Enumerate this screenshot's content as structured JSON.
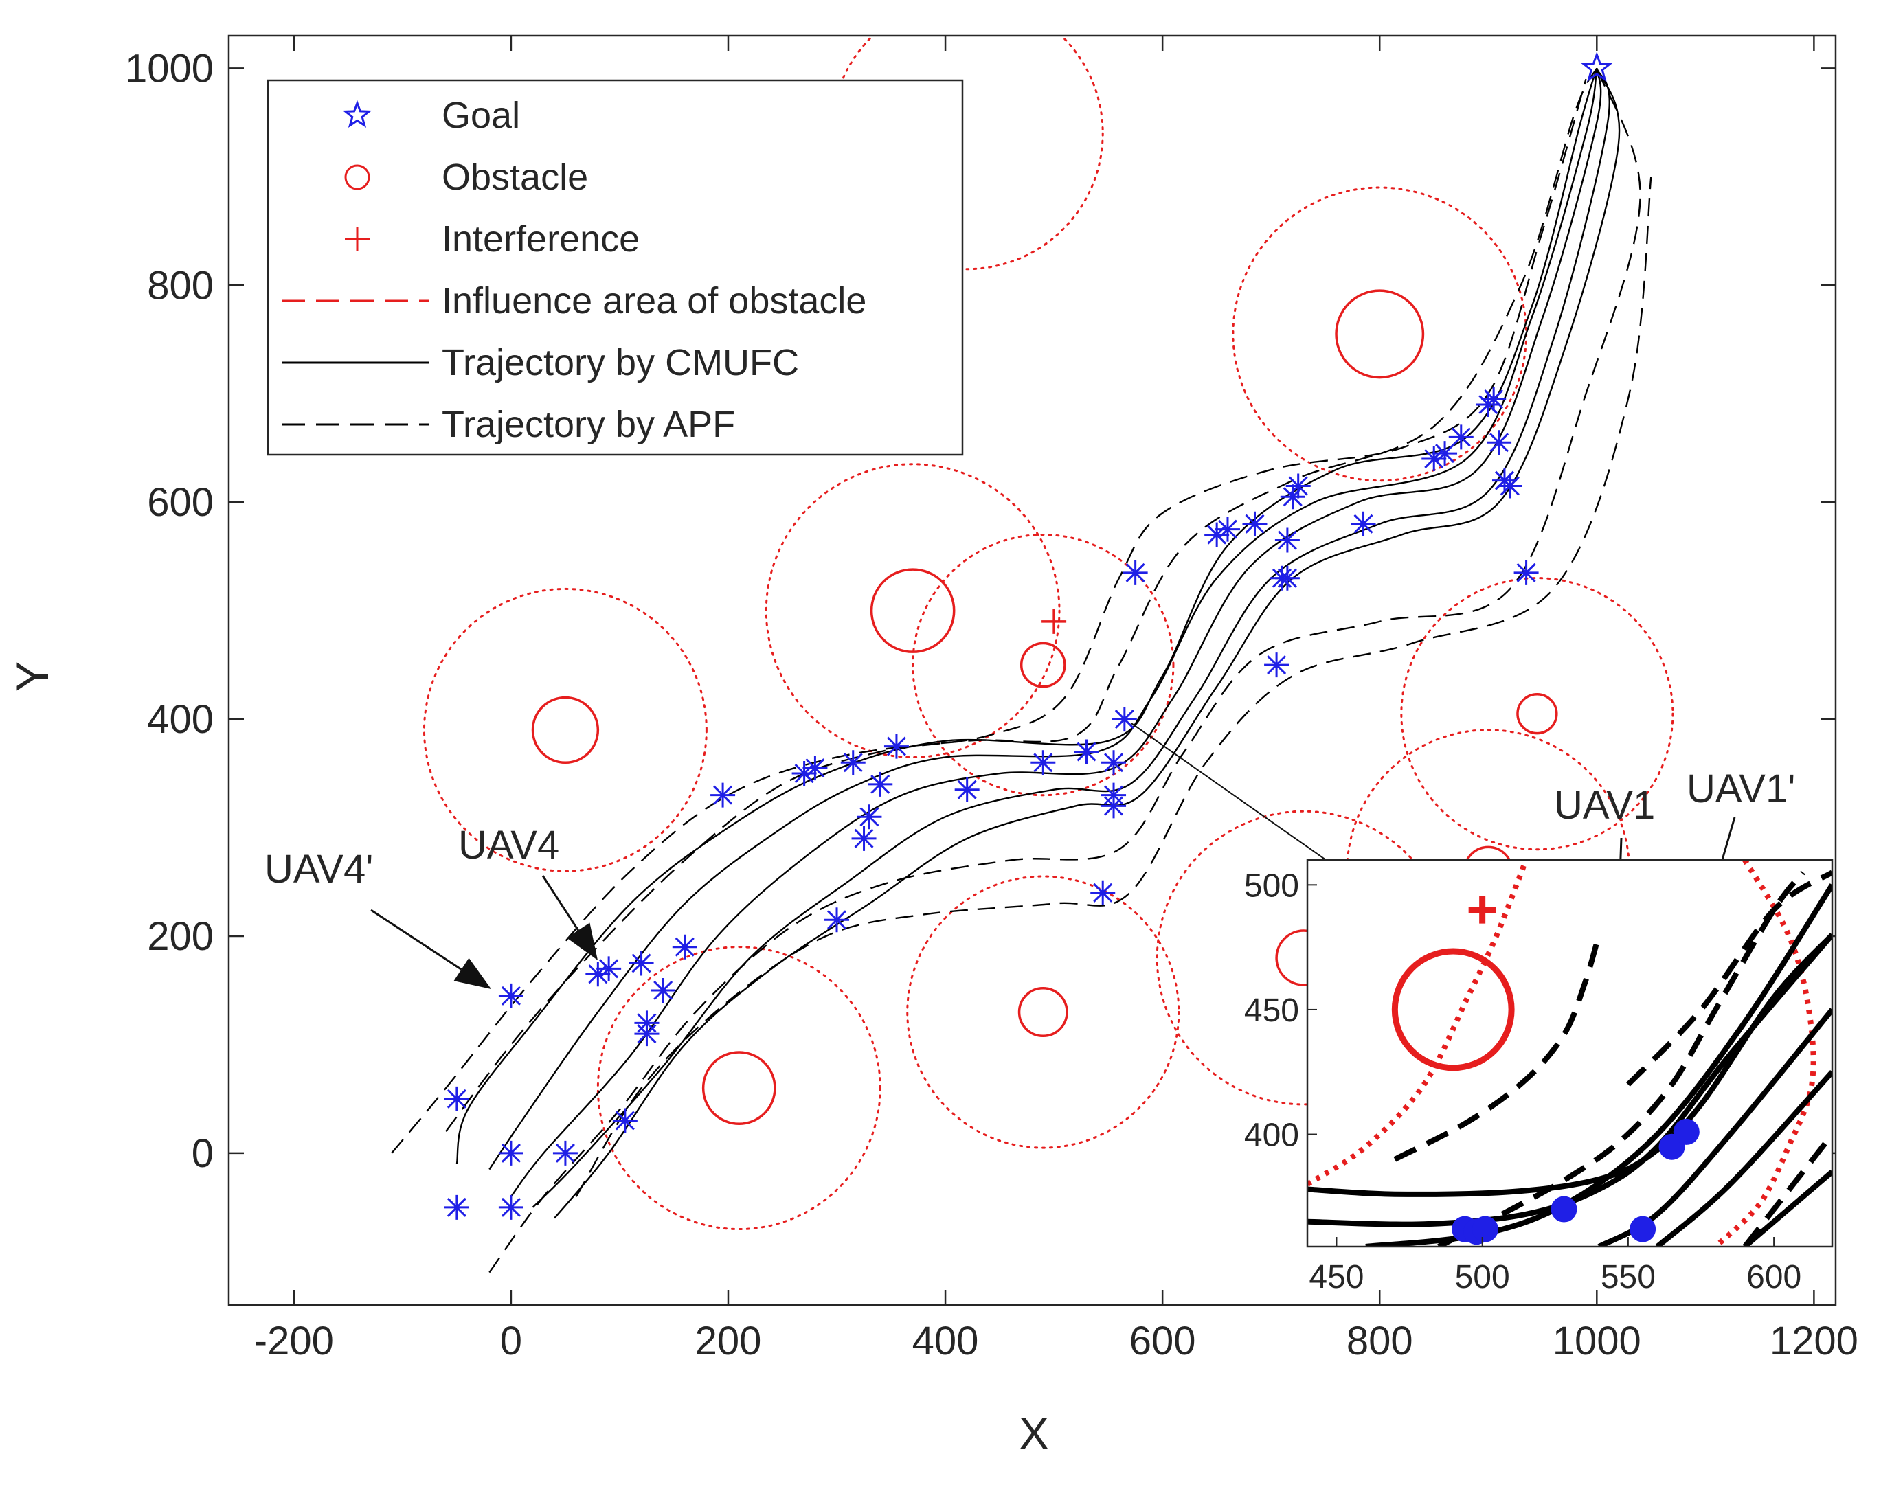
{
  "chart_data": {
    "type": "scatter",
    "title": "",
    "xlabel": "X",
    "ylabel": "Y",
    "xlim": [
      -260,
      1220
    ],
    "ylim": [
      -140,
      1030
    ],
    "xticks": [
      -200,
      0,
      200,
      400,
      600,
      800,
      1000,
      1200
    ],
    "yticks": [
      0,
      200,
      400,
      600,
      800,
      1000
    ],
    "grid": false,
    "colors": {
      "uav": "#1f1fe6",
      "obstacle": "#e61e1e",
      "axis": "#262626",
      "traj": "#000000"
    },
    "legend": {
      "placement": "top-left",
      "entries": [
        {
          "label": "Goal",
          "marker": "pentagram",
          "color": "#1f1fe6"
        },
        {
          "label": "Obstacle",
          "marker": "circle",
          "color": "#e61e1e"
        },
        {
          "label": "Interference",
          "marker": "plus",
          "color": "#e61e1e"
        },
        {
          "label": "Influence area of obstacle",
          "line": "dashed",
          "color": "#e61e1e"
        },
        {
          "label": "Trajectory by CMUFC",
          "line": "solid",
          "color": "#000000"
        },
        {
          "label": "Trajectory by APF",
          "line": "dashed",
          "color": "#000000"
        }
      ]
    },
    "goal": {
      "x": 1000,
      "y": 1000
    },
    "interference": {
      "x": 500,
      "y": 490
    },
    "obstacles": [
      {
        "x": 50,
        "y": 390,
        "r": 30,
        "influence": 130
      },
      {
        "x": 210,
        "y": 60,
        "r": 33,
        "influence": 130
      },
      {
        "x": 370,
        "y": 500,
        "r": 38,
        "influence": 135
      },
      {
        "x": 490,
        "y": 450,
        "r": 20,
        "influence": 120
      },
      {
        "x": 490,
        "y": 130,
        "r": 22,
        "influence": 125
      },
      {
        "x": 800,
        "y": 755,
        "r": 40,
        "influence": 135
      },
      {
        "x": 945,
        "y": 405,
        "r": 18,
        "influence": 125
      },
      {
        "x": 900,
        "y": 260,
        "r": 22,
        "influence": 130
      },
      {
        "x": 730,
        "y": 180,
        "r": 25,
        "influence": 135
      },
      {
        "x": 420,
        "y": 940,
        "r": 0,
        "influence": 125
      }
    ],
    "uav_starts": [
      {
        "x": 0,
        "y": 145
      },
      {
        "x": -50,
        "y": 50
      },
      {
        "x": 0,
        "y": 0
      },
      {
        "x": 50,
        "y": 0
      },
      {
        "x": -50,
        "y": -50
      },
      {
        "x": 0,
        "y": -50
      },
      {
        "x": 105,
        "y": 30
      },
      {
        "x": 125,
        "y": 110
      },
      {
        "x": 125,
        "y": 120
      },
      {
        "x": 140,
        "y": 150
      },
      {
        "x": 120,
        "y": 175
      },
      {
        "x": 160,
        "y": 190
      },
      {
        "x": 80,
        "y": 165
      },
      {
        "x": 90,
        "y": 170
      }
    ],
    "uav_markers": [
      {
        "x": 195,
        "y": 330
      },
      {
        "x": 270,
        "y": 350
      },
      {
        "x": 280,
        "y": 355
      },
      {
        "x": 315,
        "y": 360
      },
      {
        "x": 340,
        "y": 340
      },
      {
        "x": 330,
        "y": 310
      },
      {
        "x": 325,
        "y": 290
      },
      {
        "x": 355,
        "y": 375
      },
      {
        "x": 420,
        "y": 335
      },
      {
        "x": 490,
        "y": 360
      },
      {
        "x": 530,
        "y": 370
      },
      {
        "x": 555,
        "y": 360
      },
      {
        "x": 555,
        "y": 330
      },
      {
        "x": 555,
        "y": 320
      },
      {
        "x": 565,
        "y": 400
      },
      {
        "x": 575,
        "y": 535
      },
      {
        "x": 300,
        "y": 215
      },
      {
        "x": 545,
        "y": 240
      },
      {
        "x": 650,
        "y": 570
      },
      {
        "x": 660,
        "y": 575
      },
      {
        "x": 685,
        "y": 580
      },
      {
        "x": 715,
        "y": 565
      },
      {
        "x": 710,
        "y": 530
      },
      {
        "x": 715,
        "y": 530
      },
      {
        "x": 705,
        "y": 450
      },
      {
        "x": 720,
        "y": 605
      },
      {
        "x": 725,
        "y": 615
      },
      {
        "x": 785,
        "y": 580
      },
      {
        "x": 850,
        "y": 640
      },
      {
        "x": 860,
        "y": 645
      },
      {
        "x": 875,
        "y": 660
      },
      {
        "x": 900,
        "y": 690
      },
      {
        "x": 905,
        "y": 695
      },
      {
        "x": 910,
        "y": 655
      },
      {
        "x": 915,
        "y": 620
      },
      {
        "x": 920,
        "y": 615
      },
      {
        "x": 935,
        "y": 535
      }
    ],
    "trajectories": [
      {
        "method": "CMUFC",
        "points": [
          [
            -50,
            -10
          ],
          [
            -40,
            40
          ],
          [
            20,
            120
          ],
          [
            110,
            230
          ],
          [
            200,
            300
          ],
          [
            290,
            350
          ],
          [
            400,
            380
          ],
          [
            550,
            380
          ],
          [
            600,
            440
          ],
          [
            660,
            560
          ],
          [
            760,
            630
          ],
          [
            880,
            660
          ],
          [
            940,
            780
          ],
          [
            985,
            950
          ],
          [
            1000,
            1000
          ]
        ]
      },
      {
        "method": "CMUFC",
        "points": [
          [
            -20,
            -15
          ],
          [
            10,
            30
          ],
          [
            80,
            130
          ],
          [
            160,
            230
          ],
          [
            250,
            300
          ],
          [
            320,
            340
          ],
          [
            400,
            365
          ],
          [
            540,
            370
          ],
          [
            590,
            420
          ],
          [
            650,
            530
          ],
          [
            740,
            600
          ],
          [
            880,
            640
          ],
          [
            940,
            770
          ],
          [
            990,
            940
          ],
          [
            1000,
            1000
          ]
        ]
      },
      {
        "method": "CMUFC",
        "points": [
          [
            0,
            -40
          ],
          [
            30,
            0
          ],
          [
            110,
            90
          ],
          [
            190,
            200
          ],
          [
            280,
            280
          ],
          [
            360,
            330
          ],
          [
            450,
            350
          ],
          [
            555,
            355
          ],
          [
            610,
            420
          ],
          [
            680,
            540
          ],
          [
            780,
            600
          ],
          [
            890,
            630
          ],
          [
            950,
            770
          ],
          [
            1000,
            950
          ],
          [
            1000,
            1000
          ]
        ]
      },
      {
        "method": "CMUFC",
        "points": [
          [
            20,
            -50
          ],
          [
            60,
            -10
          ],
          [
            140,
            80
          ],
          [
            220,
            180
          ],
          [
            310,
            250
          ],
          [
            400,
            310
          ],
          [
            500,
            335
          ],
          [
            570,
            340
          ],
          [
            630,
            420
          ],
          [
            700,
            530
          ],
          [
            800,
            580
          ],
          [
            900,
            610
          ],
          [
            960,
            750
          ],
          [
            1010,
            950
          ],
          [
            1000,
            1000
          ]
        ]
      },
      {
        "method": "CMUFC",
        "points": [
          [
            40,
            -60
          ],
          [
            90,
            0
          ],
          [
            160,
            100
          ],
          [
            240,
            170
          ],
          [
            330,
            230
          ],
          [
            420,
            290
          ],
          [
            520,
            320
          ],
          [
            580,
            330
          ],
          [
            650,
            430
          ],
          [
            720,
            530
          ],
          [
            820,
            570
          ],
          [
            910,
            600
          ],
          [
            970,
            740
          ],
          [
            1020,
            930
          ],
          [
            1000,
            1000
          ]
        ]
      },
      {
        "method": "APF",
        "points": [
          [
            -110,
            0
          ],
          [
            -60,
            60
          ],
          [
            20,
            160
          ],
          [
            110,
            260
          ],
          [
            200,
            330
          ],
          [
            300,
            365
          ],
          [
            420,
            380
          ],
          [
            520,
            385
          ],
          [
            560,
            450
          ],
          [
            620,
            560
          ],
          [
            720,
            620
          ],
          [
            850,
            670
          ],
          [
            930,
            800
          ],
          [
            980,
            960
          ],
          [
            1000,
            1000
          ]
        ]
      },
      {
        "method": "APF",
        "points": [
          [
            -20,
            -110
          ],
          [
            30,
            -40
          ],
          [
            100,
            40
          ],
          [
            170,
            130
          ],
          [
            260,
            210
          ],
          [
            350,
            250
          ],
          [
            460,
            270
          ],
          [
            560,
            280
          ],
          [
            620,
            370
          ],
          [
            690,
            460
          ],
          [
            800,
            490
          ],
          [
            920,
            520
          ],
          [
            990,
            700
          ],
          [
            1040,
            880
          ],
          [
            1000,
            1000
          ]
        ]
      },
      {
        "method": "APF",
        "points": [
          [
            60,
            -40
          ],
          [
            120,
            60
          ],
          [
            200,
            140
          ],
          [
            290,
            200
          ],
          [
            380,
            220
          ],
          [
            500,
            230
          ],
          [
            570,
            240
          ],
          [
            640,
            360
          ],
          [
            720,
            440
          ],
          [
            830,
            470
          ],
          [
            960,
            520
          ],
          [
            1030,
            700
          ],
          [
            1050,
            900
          ]
        ]
      },
      {
        "method": "APF",
        "points": [
          [
            -60,
            20
          ],
          [
            0,
            100
          ],
          [
            70,
            180
          ],
          [
            160,
            270
          ],
          [
            250,
            340
          ],
          [
            340,
            370
          ],
          [
            440,
            385
          ],
          [
            510,
            420
          ],
          [
            560,
            530
          ],
          [
            600,
            590
          ],
          [
            700,
            630
          ],
          [
            820,
            650
          ],
          [
            900,
            700
          ],
          [
            950,
            850
          ],
          [
            990,
            990
          ]
        ]
      }
    ],
    "annotations": [
      {
        "text": "UAV4'",
        "target_x": -5,
        "target_y": 148
      },
      {
        "text": "UAV4",
        "target_x": 80,
        "target_y": 185
      },
      {
        "text": "UAV1",
        "target_x": 558,
        "target_y": 385
      },
      {
        "text": "UAV1'",
        "target_x": 570,
        "target_y": 395
      }
    ],
    "inset": {
      "xlim": [
        440,
        620
      ],
      "ylim": [
        355,
        510
      ],
      "xticks": [
        450,
        500,
        550,
        600
      ],
      "yticks": [
        400,
        450,
        500
      ],
      "source_point": {
        "x": 565,
        "y": 400
      },
      "blue_dots": [
        {
          "x": 494,
          "y": 362
        },
        {
          "x": 498,
          "y": 361
        },
        {
          "x": 501,
          "y": 362
        },
        {
          "x": 528,
          "y": 370
        },
        {
          "x": 555,
          "y": 362
        },
        {
          "x": 565,
          "y": 395
        },
        {
          "x": 570,
          "y": 401
        }
      ],
      "obstacle": {
        "x": 490,
        "y": 450,
        "r": 20
      },
      "interference": {
        "x": 500,
        "y": 490
      },
      "influence_curves": [
        [
          [
            440,
            380
          ],
          [
            460,
            395
          ],
          [
            480,
            420
          ],
          [
            495,
            455
          ],
          [
            505,
            480
          ],
          [
            515,
            510
          ]
        ],
        [
          [
            590,
            510
          ],
          [
            605,
            480
          ],
          [
            612,
            450
          ],
          [
            613,
            420
          ],
          [
            605,
            395
          ],
          [
            595,
            372
          ],
          [
            580,
            355
          ]
        ]
      ],
      "solid_curves": [
        [
          [
            440,
            378
          ],
          [
            470,
            376
          ],
          [
            510,
            377
          ],
          [
            540,
            382
          ],
          [
            558,
            392
          ],
          [
            575,
            412
          ],
          [
            600,
            455
          ],
          [
            620,
            480
          ]
        ],
        [
          [
            440,
            365
          ],
          [
            480,
            364
          ],
          [
            515,
            368
          ],
          [
            540,
            378
          ],
          [
            560,
            395
          ],
          [
            585,
            432
          ],
          [
            620,
            480
          ]
        ],
        [
          [
            460,
            355
          ],
          [
            500,
            360
          ],
          [
            530,
            373
          ],
          [
            560,
            400
          ],
          [
            590,
            445
          ],
          [
            620,
            500
          ]
        ],
        [
          [
            540,
            355
          ],
          [
            560,
            368
          ],
          [
            585,
            400
          ],
          [
            620,
            450
          ]
        ],
        [
          [
            560,
            355
          ],
          [
            585,
            380
          ],
          [
            620,
            425
          ]
        ],
        [
          [
            590,
            355
          ],
          [
            620,
            385
          ]
        ]
      ],
      "dashed_curves": [
        [
          [
            470,
            390
          ],
          [
            495,
            405
          ],
          [
            515,
            422
          ],
          [
            528,
            440
          ],
          [
            535,
            460
          ],
          [
            540,
            480
          ]
        ],
        [
          [
            485,
            355
          ],
          [
            510,
            370
          ],
          [
            530,
            383
          ],
          [
            548,
            398
          ],
          [
            565,
            420
          ],
          [
            580,
            450
          ],
          [
            600,
            490
          ],
          [
            610,
            505
          ]
        ],
        [
          [
            550,
            420
          ],
          [
            575,
            450
          ],
          [
            600,
            490
          ],
          [
            620,
            505
          ]
        ],
        [
          [
            590,
            355
          ],
          [
            620,
            400
          ]
        ]
      ]
    }
  }
}
